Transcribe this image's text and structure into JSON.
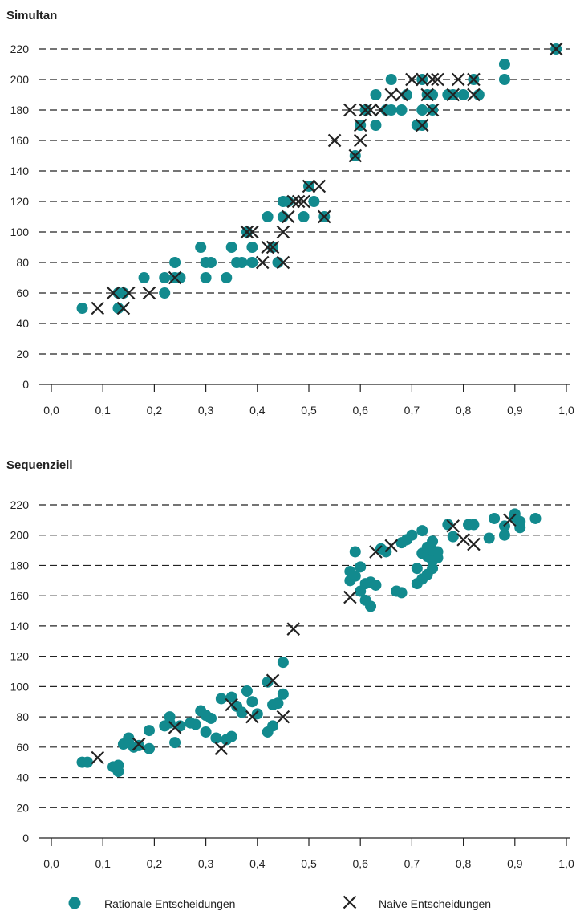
{
  "colors": {
    "rational": "#128a8e",
    "naive": "#222222",
    "grid": "#222222"
  },
  "legend": {
    "rational_label": "Rationale Entscheidungen",
    "naive_label": "Naive Entscheidungen"
  },
  "chart_data": [
    {
      "type": "scatter",
      "title": "Simultan",
      "xlim": [
        0,
        1
      ],
      "ylim": [
        0,
        220
      ],
      "xticks": [
        "0,0",
        "0,1",
        "0,2",
        "0,3",
        "0,4",
        "0,5",
        "0,6",
        "0,7",
        "0,8",
        "0,9",
        "1,0"
      ],
      "yticks": [
        "0",
        "20",
        "40",
        "60",
        "80",
        "100",
        "120",
        "140",
        "160",
        "180",
        "200",
        "220"
      ],
      "grid": "horizontal dashed",
      "series": [
        {
          "name": "Rationale Entscheidungen",
          "marker": "circle",
          "points": [
            [
              0.06,
              50
            ],
            [
              0.13,
              50
            ],
            [
              0.13,
              60
            ],
            [
              0.14,
              60
            ],
            [
              0.18,
              70
            ],
            [
              0.22,
              60
            ],
            [
              0.22,
              70
            ],
            [
              0.24,
              70
            ],
            [
              0.24,
              80
            ],
            [
              0.25,
              70
            ],
            [
              0.29,
              90
            ],
            [
              0.3,
              70
            ],
            [
              0.3,
              80
            ],
            [
              0.31,
              80
            ],
            [
              0.34,
              70
            ],
            [
              0.35,
              90
            ],
            [
              0.36,
              80
            ],
            [
              0.37,
              80
            ],
            [
              0.38,
              100
            ],
            [
              0.39,
              80
            ],
            [
              0.39,
              90
            ],
            [
              0.42,
              110
            ],
            [
              0.43,
              90
            ],
            [
              0.44,
              80
            ],
            [
              0.45,
              110
            ],
            [
              0.45,
              120
            ],
            [
              0.46,
              120
            ],
            [
              0.49,
              110
            ],
            [
              0.5,
              130
            ],
            [
              0.51,
              120
            ],
            [
              0.53,
              110
            ],
            [
              0.59,
              150
            ],
            [
              0.6,
              170
            ],
            [
              0.61,
              180
            ],
            [
              0.63,
              170
            ],
            [
              0.63,
              190
            ],
            [
              0.65,
              180
            ],
            [
              0.66,
              200
            ],
            [
              0.66,
              180
            ],
            [
              0.68,
              180
            ],
            [
              0.69,
              190
            ],
            [
              0.71,
              170
            ],
            [
              0.72,
              170
            ],
            [
              0.72,
              180
            ],
            [
              0.72,
              200
            ],
            [
              0.73,
              190
            ],
            [
              0.74,
              180
            ],
            [
              0.74,
              190
            ],
            [
              0.77,
              190
            ],
            [
              0.78,
              190
            ],
            [
              0.8,
              190
            ],
            [
              0.82,
              200
            ],
            [
              0.83,
              190
            ],
            [
              0.88,
              200
            ],
            [
              0.88,
              210
            ],
            [
              0.98,
              220
            ]
          ]
        },
        {
          "name": "Naive Entscheidungen",
          "marker": "x",
          "points": [
            [
              0.09,
              50
            ],
            [
              0.12,
              60
            ],
            [
              0.14,
              50
            ],
            [
              0.15,
              60
            ],
            [
              0.19,
              60
            ],
            [
              0.24,
              70
            ],
            [
              0.38,
              100
            ],
            [
              0.39,
              100
            ],
            [
              0.41,
              80
            ],
            [
              0.42,
              90
            ],
            [
              0.43,
              90
            ],
            [
              0.45,
              80
            ],
            [
              0.45,
              100
            ],
            [
              0.46,
              110
            ],
            [
              0.47,
              120
            ],
            [
              0.48,
              120
            ],
            [
              0.49,
              120
            ],
            [
              0.5,
              130
            ],
            [
              0.52,
              130
            ],
            [
              0.53,
              110
            ],
            [
              0.55,
              160
            ],
            [
              0.58,
              180
            ],
            [
              0.59,
              150
            ],
            [
              0.6,
              160
            ],
            [
              0.6,
              170
            ],
            [
              0.61,
              180
            ],
            [
              0.62,
              180
            ],
            [
              0.64,
              180
            ],
            [
              0.66,
              190
            ],
            [
              0.68,
              190
            ],
            [
              0.7,
              200
            ],
            [
              0.72,
              170
            ],
            [
              0.72,
              200
            ],
            [
              0.73,
              190
            ],
            [
              0.74,
              180
            ],
            [
              0.74,
              200
            ],
            [
              0.75,
              200
            ],
            [
              0.78,
              190
            ],
            [
              0.79,
              200
            ],
            [
              0.82,
              190
            ],
            [
              0.82,
              200
            ],
            [
              0.98,
              220
            ]
          ]
        }
      ]
    },
    {
      "type": "scatter",
      "title": "Sequenziell",
      "xlim": [
        0,
        1
      ],
      "ylim": [
        0,
        220
      ],
      "xticks": [
        "0,0",
        "0,1",
        "0,2",
        "0,3",
        "0,4",
        "0,5",
        "0,6",
        "0,7",
        "0,8",
        "0,9",
        "1,0"
      ],
      "yticks": [
        "0",
        "20",
        "40",
        "60",
        "80",
        "100",
        "120",
        "140",
        "160",
        "180",
        "200",
        "220"
      ],
      "grid": "horizontal dashed",
      "series": [
        {
          "name": "Rationale Entscheidungen",
          "marker": "circle",
          "points": [
            [
              0.06,
              50
            ],
            [
              0.07,
              50
            ],
            [
              0.12,
              47
            ],
            [
              0.13,
              44
            ],
            [
              0.13,
              48
            ],
            [
              0.14,
              62
            ],
            [
              0.15,
              63
            ],
            [
              0.15,
              66
            ],
            [
              0.16,
              60
            ],
            [
              0.17,
              61
            ],
            [
              0.19,
              59
            ],
            [
              0.19,
              71
            ],
            [
              0.22,
              74
            ],
            [
              0.23,
              80
            ],
            [
              0.23,
              76
            ],
            [
              0.24,
              63
            ],
            [
              0.25,
              74
            ],
            [
              0.27,
              76
            ],
            [
              0.28,
              75
            ],
            [
              0.29,
              84
            ],
            [
              0.3,
              81
            ],
            [
              0.3,
              70
            ],
            [
              0.31,
              79
            ],
            [
              0.32,
              66
            ],
            [
              0.33,
              92
            ],
            [
              0.34,
              65
            ],
            [
              0.35,
              93
            ],
            [
              0.35,
              67
            ],
            [
              0.36,
              87
            ],
            [
              0.37,
              83
            ],
            [
              0.38,
              97
            ],
            [
              0.39,
              90
            ],
            [
              0.4,
              82
            ],
            [
              0.42,
              70
            ],
            [
              0.42,
              103
            ],
            [
              0.43,
              88
            ],
            [
              0.43,
              74
            ],
            [
              0.44,
              89
            ],
            [
              0.45,
              95
            ],
            [
              0.45,
              116
            ],
            [
              0.58,
              176
            ],
            [
              0.58,
              170
            ],
            [
              0.59,
              189
            ],
            [
              0.59,
              173
            ],
            [
              0.6,
              163
            ],
            [
              0.6,
              179
            ],
            [
              0.61,
              168
            ],
            [
              0.61,
              157
            ],
            [
              0.62,
              153
            ],
            [
              0.62,
              169
            ],
            [
              0.63,
              167
            ],
            [
              0.64,
              191
            ],
            [
              0.65,
              189
            ],
            [
              0.67,
              163
            ],
            [
              0.68,
              162
            ],
            [
              0.68,
              195
            ],
            [
              0.69,
              197
            ],
            [
              0.7,
              200
            ],
            [
              0.71,
              178
            ],
            [
              0.71,
              168
            ],
            [
              0.72,
              188
            ],
            [
              0.72,
              203
            ],
            [
              0.72,
              171
            ],
            [
              0.73,
              192
            ],
            [
              0.73,
              174
            ],
            [
              0.73,
              186
            ],
            [
              0.74,
              178
            ],
            [
              0.74,
              196
            ],
            [
              0.74,
              183
            ],
            [
              0.74,
              190
            ],
            [
              0.75,
              185
            ],
            [
              0.75,
              189
            ],
            [
              0.77,
              207
            ],
            [
              0.78,
              199
            ],
            [
              0.81,
              207
            ],
            [
              0.82,
              207
            ],
            [
              0.85,
              198
            ],
            [
              0.86,
              211
            ],
            [
              0.88,
              200
            ],
            [
              0.88,
              206
            ],
            [
              0.9,
              214
            ],
            [
              0.9,
              212
            ],
            [
              0.91,
              209
            ],
            [
              0.91,
              205
            ],
            [
              0.94,
              211
            ]
          ]
        },
        {
          "name": "Naive Entscheidungen",
          "marker": "x",
          "points": [
            [
              0.09,
              53
            ],
            [
              0.17,
              62
            ],
            [
              0.24,
              73
            ],
            [
              0.33,
              59
            ],
            [
              0.35,
              88
            ],
            [
              0.39,
              80
            ],
            [
              0.43,
              104
            ],
            [
              0.45,
              80
            ],
            [
              0.47,
              138
            ],
            [
              0.58,
              159
            ],
            [
              0.63,
              189
            ],
            [
              0.66,
              193
            ],
            [
              0.78,
              206
            ],
            [
              0.8,
              197
            ],
            [
              0.82,
              194
            ],
            [
              0.89,
              210
            ]
          ]
        }
      ]
    }
  ]
}
